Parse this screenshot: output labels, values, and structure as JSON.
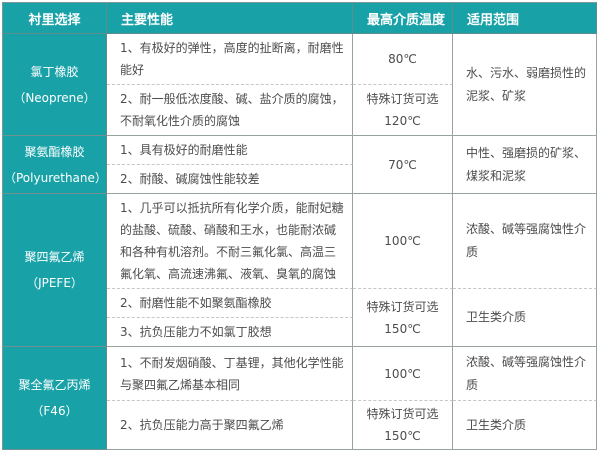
{
  "colors": {
    "accent": "#18a2a8",
    "header_text": "#ffffff",
    "body_text": "#4c4c4c"
  },
  "header": {
    "columns": [
      "衬里选择",
      "主要性能",
      "最高介质温度",
      "适用范围"
    ]
  },
  "materials": [
    {
      "name": "氯丁橡胶",
      "alias": "（Neoprene）",
      "range": "水、污水、弱磨损性的泥浆、矿浆",
      "rows": [
        {
          "perf": "1、有极好的弹性，高度的扯断离，耐磨性能好",
          "temp": "80℃"
        },
        {
          "perf": "2、耐一般低浓度酸、碱、盐介质的腐蚀，不耐氧化性介质的腐蚀",
          "temp": "特殊订货可选",
          "temp2": "120℃"
        }
      ]
    },
    {
      "name": "聚氨酯橡胶",
      "alias": "（Polyurethane）",
      "temp": "70℃",
      "range": "中性、强磨损的矿浆、煤浆和泥浆",
      "rows": [
        {
          "perf": "1、具有极好的耐磨性能"
        },
        {
          "perf": "2、耐酸、碱腐蚀性能较差"
        }
      ]
    },
    {
      "name": "聚四氟乙烯",
      "alias": "（JPEFE）",
      "range2": "卫生类介质",
      "rows": [
        {
          "perf": "1、几乎可以抵抗所有化学介质，能耐妃糖的盐酸、硫酸、硝酸和王水，也能耐浓碱和各种有机溶剂。不耐三氟化氯、高温三氟化氧、高流速沸氟、液氧、臭氧的腐蚀",
          "temp": "100℃",
          "range": "浓酸、碱等强腐蚀性介质"
        },
        {
          "perf": "2、耐磨性能不如聚氨酯橡胶",
          "temp": "特殊订货可选",
          "temp2": "150℃"
        },
        {
          "perf": "3、抗负压能力不如氯丁胶想"
        }
      ]
    },
    {
      "name": "聚全氟乙丙烯",
      "alias": "（F46）",
      "range2": "卫生类介质",
      "rows": [
        {
          "perf": "1、不耐发烟硝酸、丁基锂，其他化学性能与聚四氟乙烯基本相同",
          "temp": "100℃",
          "range": "浓酸、碱等强腐蚀性介质"
        },
        {
          "perf": "2、抗负压能力高于聚四氟乙烯",
          "temp": "特殊订货可选",
          "temp2": "150℃"
        }
      ]
    }
  ]
}
